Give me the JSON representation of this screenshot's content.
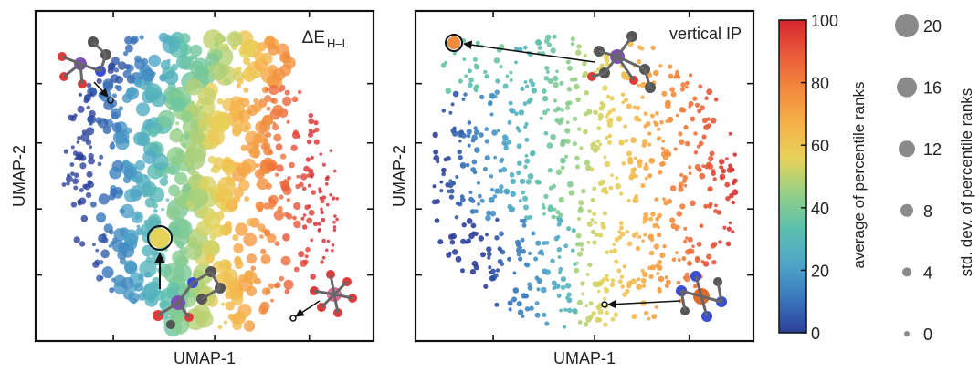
{
  "chart_data": [
    {
      "type": "scatter",
      "title": "ΔE",
      "title_subscript": "H–L",
      "xlabel": "UMAP-1",
      "ylabel": "UMAP-2",
      "ticks": "unlabeled",
      "color_encoding": "average of percentile ranks",
      "size_encoding": "std. dev. of percentile ranks",
      "highlighted_points": [
        {
          "label": "large-std complex",
          "size_level": 20
        },
        {
          "label": "upper-left complex",
          "size_level": 0
        },
        {
          "label": "lower-right complex",
          "size_level": 0
        }
      ]
    },
    {
      "type": "scatter",
      "title": "vertical IP",
      "xlabel": "UMAP-1",
      "ylabel": "UMAP-2",
      "ticks": "unlabeled",
      "color_encoding": "average of percentile ranks",
      "size_encoding": "std. dev. of percentile ranks",
      "highlighted_points": [
        {
          "label": "top-left complex",
          "size_level": 16
        },
        {
          "label": "lower-right complex",
          "size_level": 0
        }
      ]
    }
  ],
  "colorbar": {
    "label": "average of percentile ranks",
    "ticks": [
      0,
      20,
      40,
      60,
      80,
      100
    ],
    "colors": [
      "#2c3f98",
      "#3a78bd",
      "#4fa6c8",
      "#5cc0ae",
      "#93cf86",
      "#e6d35a",
      "#f6b24a",
      "#f28a3d",
      "#ea5b3a",
      "#d7262e"
    ]
  },
  "size_legend": {
    "label": "std. dev. of percentile ranks",
    "values": [
      20,
      16,
      12,
      8,
      4,
      0
    ],
    "color": "#8a8a8a"
  }
}
